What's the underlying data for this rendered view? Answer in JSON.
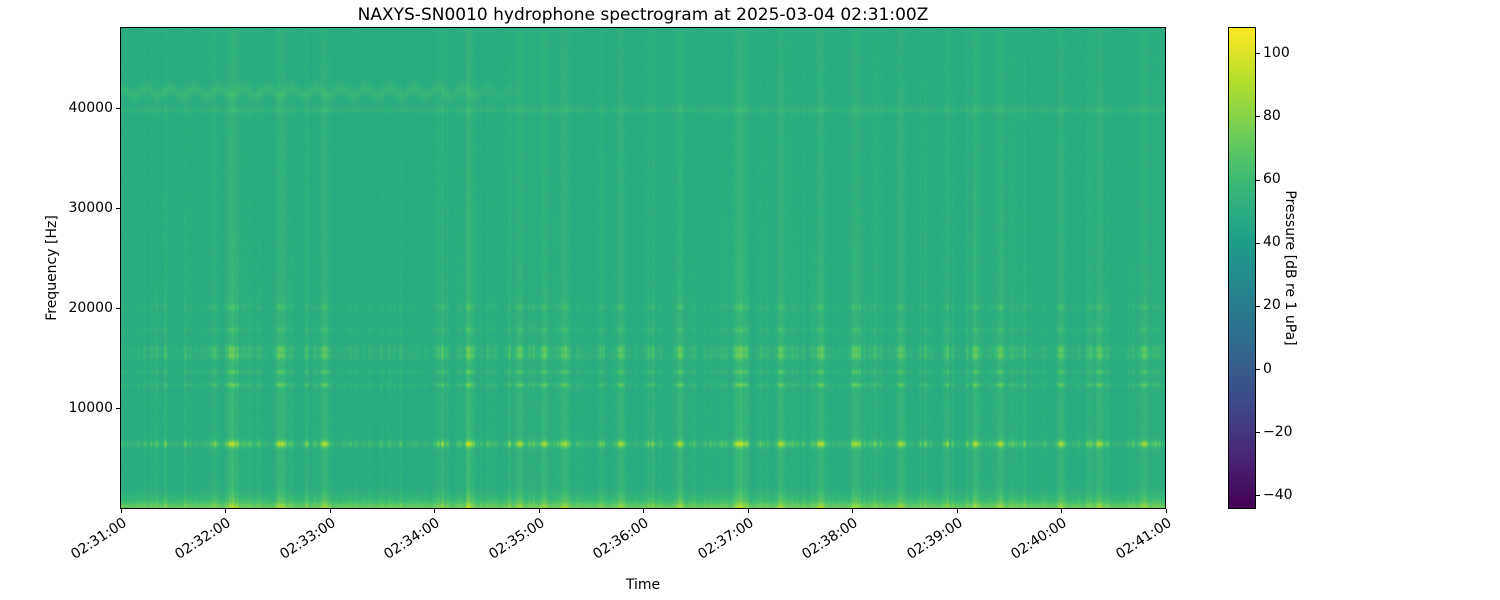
{
  "figure": {
    "background_color": "#ffffff",
    "text_color": "#000000"
  },
  "chart_data": {
    "type": "heatmap",
    "variant": "spectrogram",
    "title": "NAXYS-SN0010 hydrophone spectrogram at 2025-03-04 02:31:00Z",
    "xlabel": "Time",
    "ylabel": "Frequency [Hz]",
    "grid": false,
    "x_ticks": [
      "02:31:00",
      "02:32:00",
      "02:33:00",
      "02:34:00",
      "02:35:00",
      "02:36:00",
      "02:37:00",
      "02:38:00",
      "02:39:00",
      "02:40:00",
      "02:41:00"
    ],
    "x_tick_rotation_deg": 33,
    "x_range_seconds": [
      0,
      600
    ],
    "y_ticks": [
      {
        "value": 10000,
        "label": "10000"
      },
      {
        "value": 20000,
        "label": "20000"
      },
      {
        "value": 30000,
        "label": "30000"
      },
      {
        "value": 40000,
        "label": "40000"
      }
    ],
    "y_range_hz": [
      0,
      48000
    ],
    "colorbar": {
      "label": "Pressure [dB re 1 uPa]",
      "ticks": [
        {
          "value": 100,
          "label": "100"
        },
        {
          "value": 80,
          "label": "80"
        },
        {
          "value": 60,
          "label": "60"
        },
        {
          "value": 40,
          "label": "40"
        },
        {
          "value": 20,
          "label": "20"
        },
        {
          "value": 0,
          "label": "0"
        },
        {
          "value": -20,
          "label": "−20"
        },
        {
          "value": -40,
          "label": "−40"
        }
      ],
      "range_db": [
        -44,
        108
      ],
      "colormap": "viridis",
      "colormap_stops": [
        "#440154",
        "#482878",
        "#3e4a89",
        "#31688e",
        "#26828e",
        "#1f9e89",
        "#35b779",
        "#6dcd59",
        "#b4de2c",
        "#fde725"
      ]
    },
    "spectrogram_model": {
      "background_level_db": 49,
      "background_color_approx": "#26a186",
      "tonal_bands": [
        {
          "center_hz": 6400,
          "sigma_hz": 240,
          "peak_db": 84,
          "mode": "pulsed"
        },
        {
          "center_hz": 12300,
          "sigma_hz": 150,
          "peak_db": 66,
          "mode": "pulsed"
        },
        {
          "center_hz": 13600,
          "sigma_hz": 150,
          "peak_db": 62,
          "mode": "pulsed"
        },
        {
          "center_hz": 15200,
          "sigma_hz": 250,
          "peak_db": 66,
          "mode": "pulsed"
        },
        {
          "center_hz": 15900,
          "sigma_hz": 250,
          "peak_db": 65,
          "mode": "pulsed"
        },
        {
          "center_hz": 17800,
          "sigma_hz": 200,
          "peak_db": 57,
          "mode": "pulsed"
        },
        {
          "center_hz": 20100,
          "sigma_hz": 220,
          "peak_db": 58,
          "mode": "pulsed"
        },
        {
          "center_hz": 39800,
          "sigma_hz": 220,
          "peak_db": 54,
          "mode": "continuous"
        },
        {
          "center_hz": 41600,
          "sigma_hz": 430,
          "peak_db": 56,
          "mode": "continuous",
          "wobble_hz": 330,
          "wobble_period_s": 14,
          "time_extent_s": [
            0,
            215
          ]
        },
        {
          "center_hz": 400,
          "sigma_hz": 700,
          "peak_db": 60,
          "mode": "continuous"
        },
        {
          "center_hz": 80,
          "sigma_hz": 260,
          "peak_db": 63,
          "mode": "continuous"
        }
      ],
      "broadband_click_gain_db": 8.5,
      "strong_event_times_s": [
        63,
        91,
        117,
        200,
        229,
        243,
        255,
        287,
        321,
        356,
        379,
        402,
        422,
        448,
        491,
        505,
        540,
        562,
        588
      ],
      "pixel_noise_db": 2.6,
      "seed": 20250304
    }
  }
}
